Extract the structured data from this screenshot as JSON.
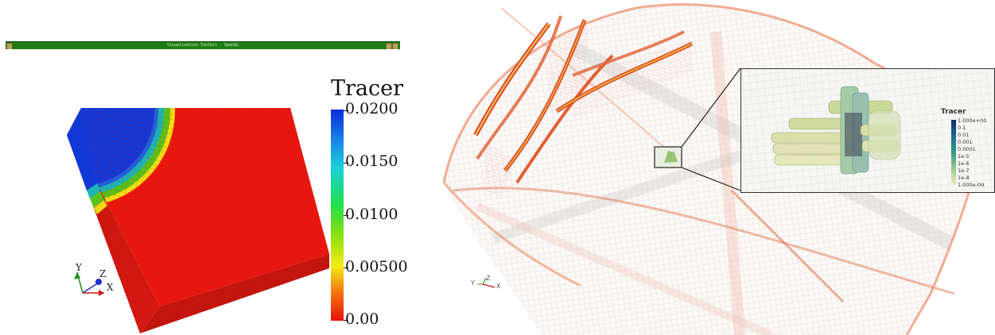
{
  "left_window": {
    "title": "Visualization Toolkit - OpenGL",
    "legend": {
      "title": "Tracer",
      "ticks": [
        "0.0200",
        "0.0150",
        "0.0100",
        "0.00500",
        "0.00"
      ]
    },
    "axes": {
      "x": "X",
      "y": "Y",
      "z": "Z"
    },
    "colors": {
      "titlebar": "#1e7d12",
      "high": "#1238d8",
      "low": "#ea1b14"
    }
  },
  "right_view": {
    "inset_legend": {
      "title": "Tracer",
      "ticks": [
        "1.000e+00",
        "0.1",
        "0.01",
        "0.001",
        "0.0001",
        "1e-5",
        "1e-6",
        "1e-7",
        "1e-8",
        "1.000e-09"
      ]
    },
    "axes": {
      "x": "X",
      "y": "Y",
      "z": "Z"
    }
  }
}
